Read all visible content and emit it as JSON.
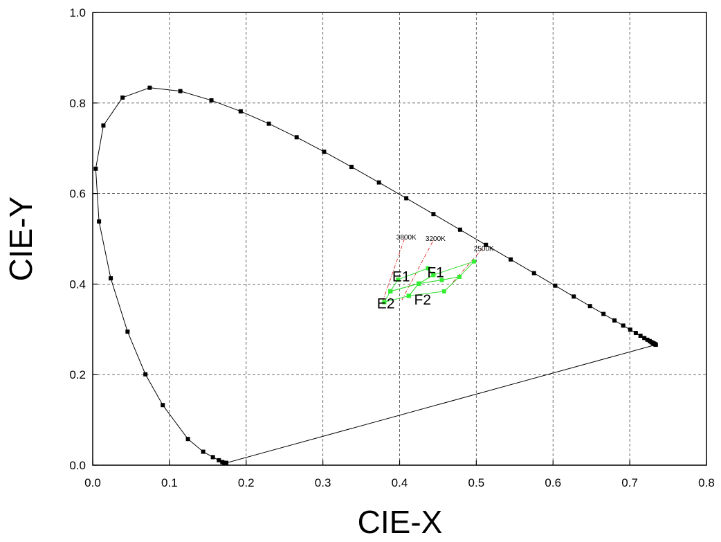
{
  "chart_data": {
    "type": "scatter",
    "xlabel": "CIE-X",
    "ylabel": "CIE-Y",
    "xlim": [
      0.0,
      0.8
    ],
    "ylim": [
      0.0,
      1.0
    ],
    "x_ticks": [
      "0.0",
      "0.1",
      "0.2",
      "0.3",
      "0.4",
      "0.5",
      "0.6",
      "0.7",
      "0.8"
    ],
    "y_ticks": [
      "0.0",
      "0.2",
      "0.4",
      "0.6",
      "0.8",
      "1.0"
    ],
    "grid": true,
    "spectral_locus": {
      "x": [
        0.1741,
        0.1738,
        0.1733,
        0.1726,
        0.1714,
        0.1689,
        0.1644,
        0.1566,
        0.144,
        0.1241,
        0.0913,
        0.0687,
        0.0454,
        0.0235,
        0.0082,
        0.0039,
        0.0139,
        0.0389,
        0.0743,
        0.1142,
        0.1547,
        0.1929,
        0.2296,
        0.2658,
        0.3016,
        0.3373,
        0.3731,
        0.4087,
        0.4441,
        0.4788,
        0.5125,
        0.5448,
        0.5752,
        0.6029,
        0.627,
        0.6482,
        0.6658,
        0.6801,
        0.6915,
        0.7006,
        0.7079,
        0.714,
        0.719,
        0.723,
        0.726,
        0.7283,
        0.73,
        0.7311,
        0.732,
        0.7327,
        0.7334,
        0.734
      ],
      "y": [
        0.005,
        0.0049,
        0.0048,
        0.0048,
        0.0051,
        0.0069,
        0.0109,
        0.0177,
        0.0297,
        0.0578,
        0.1327,
        0.2007,
        0.295,
        0.4127,
        0.5384,
        0.6548,
        0.7502,
        0.812,
        0.8338,
        0.8262,
        0.8059,
        0.7816,
        0.7543,
        0.7243,
        0.6923,
        0.6589,
        0.6245,
        0.5896,
        0.5547,
        0.5202,
        0.4866,
        0.4544,
        0.4242,
        0.3965,
        0.3725,
        0.3514,
        0.334,
        0.3197,
        0.3083,
        0.2993,
        0.292,
        0.2859,
        0.2809,
        0.277,
        0.274,
        0.2717,
        0.27,
        0.2689,
        0.268,
        0.2673,
        0.2666,
        0.266
      ]
    },
    "purple_line": {
      "x": [
        0.1741,
        0.734
      ],
      "y": [
        0.005,
        0.266
      ]
    },
    "cct_lines": [
      {
        "name": "3800K",
        "x": [
          0.378,
          0.407
        ],
        "y": [
          0.362,
          0.503
        ]
      },
      {
        "name": "3200K",
        "x": [
          0.403,
          0.445
        ],
        "y": [
          0.365,
          0.5
        ]
      },
      {
        "name": "2500K",
        "x": [
          0.458,
          0.508
        ],
        "y": [
          0.382,
          0.478
        ]
      }
    ],
    "regions": [
      {
        "name": "E1",
        "x": [
          0.388,
          0.398,
          0.437,
          0.444,
          0.425,
          0.388
        ],
        "y": [
          0.384,
          0.41,
          0.435,
          0.42,
          0.401,
          0.384
        ],
        "label_at": [
          0.402,
          0.406
        ]
      },
      {
        "name": "E2",
        "x": [
          0.38,
          0.388,
          0.425,
          0.412,
          0.38
        ],
        "y": [
          0.36,
          0.384,
          0.401,
          0.374,
          0.36
        ],
        "label_at": [
          0.382,
          0.346
        ]
      },
      {
        "name": "F1",
        "x": [
          0.425,
          0.444,
          0.497,
          0.478,
          0.455,
          0.425
        ],
        "y": [
          0.401,
          0.42,
          0.45,
          0.416,
          0.409,
          0.401
        ],
        "label_at": [
          0.447,
          0.415
        ]
      },
      {
        "name": "F2",
        "x": [
          0.412,
          0.425,
          0.455,
          0.478,
          0.458,
          0.412
        ],
        "y": [
          0.374,
          0.401,
          0.409,
          0.416,
          0.384,
          0.374
        ],
        "label_at": [
          0.43,
          0.355
        ]
      }
    ]
  }
}
